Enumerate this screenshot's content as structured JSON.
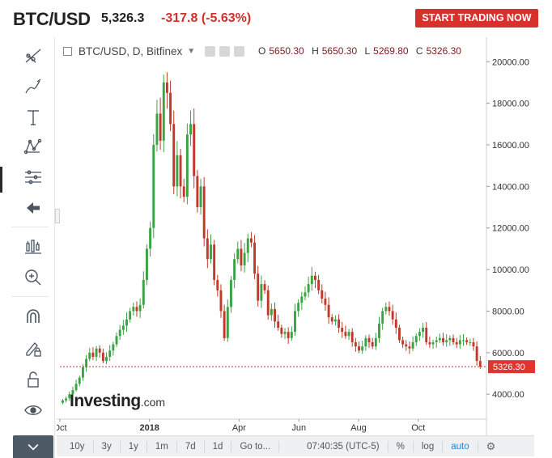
{
  "header": {
    "symbol": "BTC/USD",
    "price": "5,326.3",
    "change": "-317.8 (-5.63%)",
    "cta": "START TRADING NOW",
    "colors": {
      "down": "#d1302c",
      "cta_bg": "#d8302b"
    }
  },
  "toolbar": {
    "items": [
      {
        "name": "trend-line-icon"
      },
      {
        "name": "brush-icon"
      },
      {
        "name": "text-icon"
      },
      {
        "name": "pattern-icon"
      },
      {
        "name": "fib-icon"
      },
      {
        "name": "back-arrow-icon"
      },
      {
        "name": "indicators-icon"
      },
      {
        "name": "zoom-in-icon"
      },
      {
        "name": "magnet-icon"
      },
      {
        "name": "lock-draw-icon"
      },
      {
        "name": "lock-icon"
      },
      {
        "name": "eye-icon"
      },
      {
        "name": "chevron-down-icon"
      }
    ]
  },
  "legend": {
    "title": "BTC/USD, D, Bitfinex",
    "open_label": "O",
    "open": "5650.30",
    "high_label": "H",
    "high": "5650.30",
    "low_label": "L",
    "low": "5269.80",
    "close_label": "C",
    "close": "5326.30"
  },
  "watermark": {
    "main": "Investing",
    "sub": ".com"
  },
  "chart_data": {
    "type": "candlestick",
    "title": "BTC/USD, D, Bitfinex",
    "y_ticks": [
      "20000.00",
      "18000.00",
      "16000.00",
      "14000.00",
      "12000.00",
      "10000.00",
      "8000.00",
      "6000.00",
      "4000.00"
    ],
    "ylim": [
      2800,
      21100
    ],
    "x_ticks": [
      "Oct",
      "2018",
      "Apr",
      "Jun",
      "Aug",
      "Oct"
    ],
    "x_tick_months": [
      0,
      3,
      6,
      8,
      10,
      12
    ],
    "last_price_label": "5326.30",
    "last_price": 5326.3,
    "grid": false,
    "colors": {
      "up": "#3aa445",
      "down": "#c0392b",
      "last_line": "#c0392b"
    },
    "closes": [
      3700,
      3800,
      4000,
      4200,
      4500,
      4800,
      5300,
      5700,
      6000,
      5800,
      6200,
      6000,
      5600,
      5800,
      6100,
      6400,
      6800,
      7100,
      7300,
      7600,
      8000,
      8200,
      8000,
      8300,
      9500,
      11000,
      12000,
      16000,
      17500,
      16200,
      19000,
      18500,
      17000,
      14000,
      15500,
      14000,
      13500,
      16500,
      17000,
      14500,
      13000,
      14000,
      11500,
      10500,
      11200,
      9500,
      9000,
      8000,
      6700,
      8200,
      9500,
      10500,
      11000,
      10200,
      10800,
      11500,
      11300,
      9800,
      8500,
      9300,
      9000,
      7800,
      8100,
      7500,
      7200,
      6900,
      7000,
      6700,
      7000,
      8000,
      8400,
      8700,
      8900,
      9300,
      9700,
      9500,
      9000,
      8600,
      8300,
      7700,
      7500,
      7600,
      7200,
      7000,
      6800,
      7000,
      6500,
      6300,
      6100,
      6300,
      6700,
      6500,
      6300,
      6700,
      7400,
      8000,
      8200,
      8000,
      7600,
      7200,
      6600,
      6400,
      6300,
      6200,
      6500,
      6800,
      7000,
      7200,
      6500,
      6400,
      6500,
      6600,
      6700,
      6500,
      6600,
      6700,
      6500,
      6400,
      6600,
      6600,
      6500,
      6500,
      6300,
      5600,
      5326
    ]
  },
  "bottom_bar": {
    "ranges": [
      "10y",
      "3y",
      "1y",
      "1m",
      "7d",
      "1d"
    ],
    "goto": "Go to...",
    "time": "07:40:35 (UTC-5)",
    "percent": "%",
    "log": "log",
    "auto": "auto"
  }
}
